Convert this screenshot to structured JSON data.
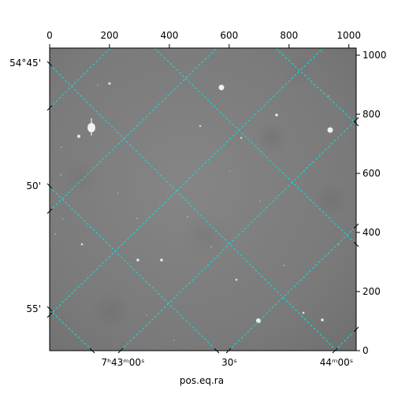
{
  "chart_data": {
    "type": "image",
    "title": "",
    "xlabel": "pos.eq.ra",
    "ylabel": "",
    "grid": true,
    "grid_color": "#00e5e5",
    "image_tone": "grayscale",
    "pixel_axes": {
      "x_range": [
        0,
        1024
      ],
      "y_range": [
        0,
        1024
      ],
      "x_ticks": [
        0,
        200,
        400,
        600,
        800,
        1000
      ],
      "y_ticks": [
        0,
        200,
        400,
        600,
        800,
        1000
      ]
    },
    "world_axes": {
      "ra_tick_labels": [
        "7ʰ43ᵐ00ˢ",
        "30ˢ",
        "44ᵐ00ˢ"
      ],
      "dec_tick_labels": [
        "54°45'",
        "50'",
        "55'"
      ]
    }
  },
  "colors": {
    "background": "#ffffff",
    "frame": "#000000",
    "sky": "#7b7b7b",
    "grid": "#00e5e5"
  }
}
